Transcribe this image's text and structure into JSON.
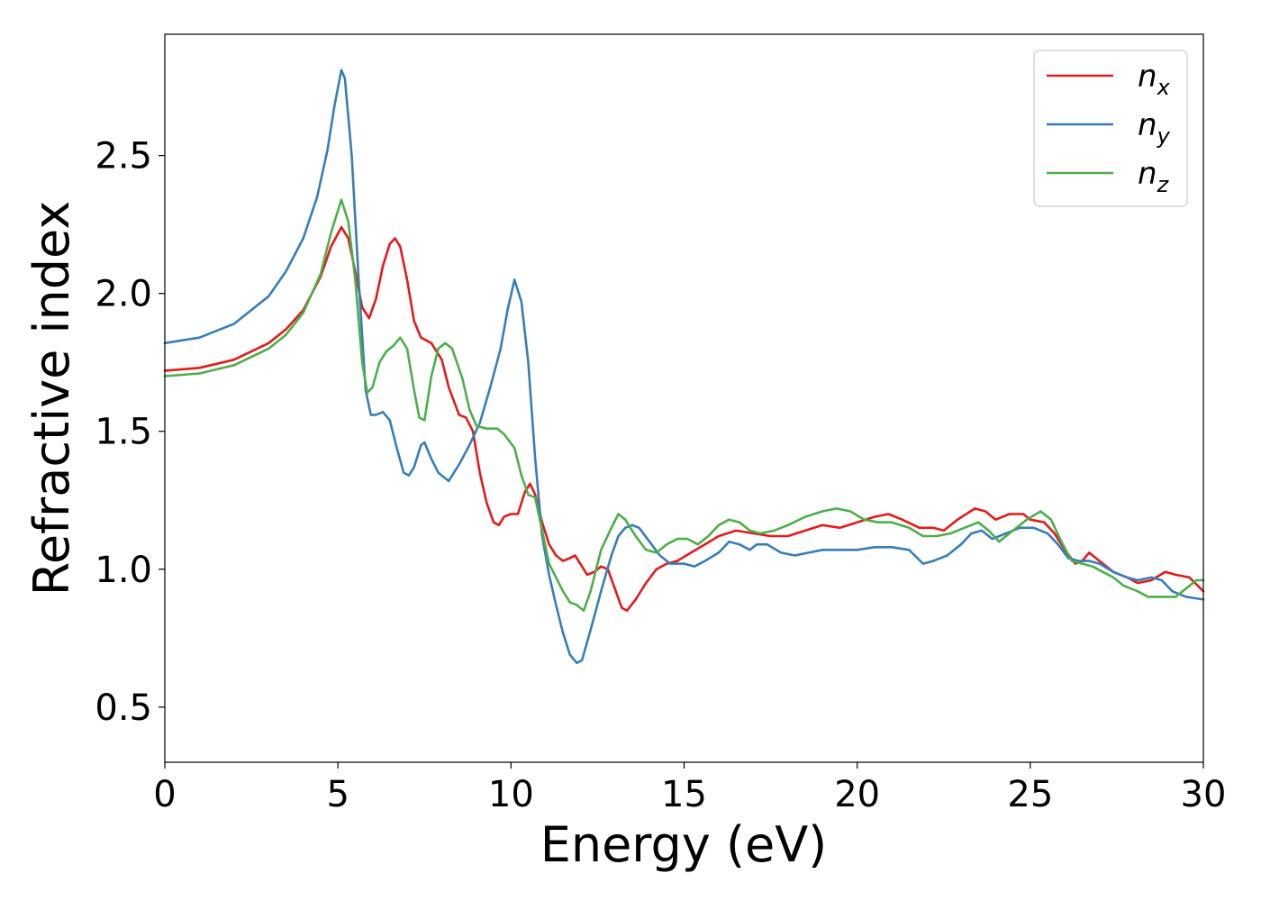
{
  "chart_data": {
    "type": "line",
    "title": "",
    "xlabel": "Energy (eV)",
    "ylabel": "Refractive index",
    "xlim": [
      0,
      30
    ],
    "ylim": [
      0.3,
      2.94
    ],
    "xticks": [
      0,
      5,
      10,
      15,
      20,
      25,
      30
    ],
    "yticks": [
      0.5,
      1.0,
      1.5,
      2.0,
      2.5
    ],
    "xtick_labels": [
      "0",
      "5",
      "10",
      "15",
      "20",
      "25",
      "30"
    ],
    "ytick_labels": [
      "0.5",
      "1.0",
      "1.5",
      "2.0",
      "2.5"
    ],
    "grid": false,
    "legend": {
      "placement": "top-right"
    },
    "series": [
      {
        "name": "n",
        "subscript": "x",
        "color": "#e41a1c",
        "points": [
          [
            0,
            1.72
          ],
          [
            1,
            1.73
          ],
          [
            2,
            1.76
          ],
          [
            3,
            1.82
          ],
          [
            3.5,
            1.87
          ],
          [
            4,
            1.94
          ],
          [
            4.5,
            2.06
          ],
          [
            4.8,
            2.17
          ],
          [
            5.1,
            2.24
          ],
          [
            5.3,
            2.2
          ],
          [
            5.5,
            2.08
          ],
          [
            5.7,
            1.95
          ],
          [
            5.9,
            1.91
          ],
          [
            6.1,
            1.98
          ],
          [
            6.3,
            2.1
          ],
          [
            6.5,
            2.18
          ],
          [
            6.65,
            2.2
          ],
          [
            6.8,
            2.17
          ],
          [
            7.0,
            2.05
          ],
          [
            7.2,
            1.9
          ],
          [
            7.4,
            1.84
          ],
          [
            7.7,
            1.82
          ],
          [
            8.0,
            1.76
          ],
          [
            8.2,
            1.66
          ],
          [
            8.5,
            1.56
          ],
          [
            8.7,
            1.55
          ],
          [
            8.9,
            1.5
          ],
          [
            9.1,
            1.35
          ],
          [
            9.3,
            1.24
          ],
          [
            9.5,
            1.17
          ],
          [
            9.65,
            1.16
          ],
          [
            9.8,
            1.19
          ],
          [
            10.0,
            1.2
          ],
          [
            10.2,
            1.2
          ],
          [
            10.4,
            1.28
          ],
          [
            10.55,
            1.31
          ],
          [
            10.7,
            1.27
          ],
          [
            10.9,
            1.17
          ],
          [
            11.1,
            1.09
          ],
          [
            11.3,
            1.05
          ],
          [
            11.5,
            1.03
          ],
          [
            11.7,
            1.04
          ],
          [
            11.85,
            1.05
          ],
          [
            12.0,
            1.02
          ],
          [
            12.2,
            0.98
          ],
          [
            12.4,
            0.99
          ],
          [
            12.6,
            1.01
          ],
          [
            12.8,
            1.0
          ],
          [
            13.0,
            0.93
          ],
          [
            13.2,
            0.86
          ],
          [
            13.35,
            0.85
          ],
          [
            13.6,
            0.89
          ],
          [
            13.9,
            0.95
          ],
          [
            14.2,
            1.0
          ],
          [
            14.5,
            1.02
          ],
          [
            14.8,
            1.03
          ],
          [
            15.2,
            1.06
          ],
          [
            15.6,
            1.09
          ],
          [
            16.0,
            1.12
          ],
          [
            16.5,
            1.14
          ],
          [
            17.0,
            1.13
          ],
          [
            17.5,
            1.12
          ],
          [
            18.0,
            1.12
          ],
          [
            18.5,
            1.14
          ],
          [
            19.0,
            1.16
          ],
          [
            19.5,
            1.15
          ],
          [
            20.0,
            1.17
          ],
          [
            20.5,
            1.19
          ],
          [
            20.9,
            1.2
          ],
          [
            21.3,
            1.18
          ],
          [
            21.8,
            1.15
          ],
          [
            22.2,
            1.15
          ],
          [
            22.5,
            1.14
          ],
          [
            22.9,
            1.18
          ],
          [
            23.4,
            1.22
          ],
          [
            23.7,
            1.21
          ],
          [
            24.0,
            1.18
          ],
          [
            24.4,
            1.2
          ],
          [
            24.8,
            1.2
          ],
          [
            25.0,
            1.18
          ],
          [
            25.4,
            1.17
          ],
          [
            25.7,
            1.13
          ],
          [
            26.0,
            1.07
          ],
          [
            26.3,
            1.02
          ],
          [
            26.5,
            1.03
          ],
          [
            26.7,
            1.06
          ],
          [
            27.0,
            1.03
          ],
          [
            27.4,
            0.99
          ],
          [
            27.8,
            0.97
          ],
          [
            28.1,
            0.95
          ],
          [
            28.5,
            0.96
          ],
          [
            28.9,
            0.99
          ],
          [
            29.2,
            0.98
          ],
          [
            29.6,
            0.97
          ],
          [
            30.0,
            0.92
          ]
        ]
      },
      {
        "name": "n",
        "subscript": "y",
        "color": "#377eb8",
        "points": [
          [
            0,
            1.82
          ],
          [
            1,
            1.84
          ],
          [
            2,
            1.89
          ],
          [
            3,
            1.99
          ],
          [
            3.5,
            2.08
          ],
          [
            4,
            2.2
          ],
          [
            4.4,
            2.35
          ],
          [
            4.7,
            2.52
          ],
          [
            4.9,
            2.68
          ],
          [
            5.1,
            2.81
          ],
          [
            5.2,
            2.78
          ],
          [
            5.4,
            2.5
          ],
          [
            5.6,
            2.05
          ],
          [
            5.8,
            1.65
          ],
          [
            5.95,
            1.56
          ],
          [
            6.1,
            1.56
          ],
          [
            6.3,
            1.57
          ],
          [
            6.5,
            1.54
          ],
          [
            6.7,
            1.44
          ],
          [
            6.9,
            1.35
          ],
          [
            7.05,
            1.34
          ],
          [
            7.2,
            1.37
          ],
          [
            7.4,
            1.45
          ],
          [
            7.5,
            1.46
          ],
          [
            7.7,
            1.4
          ],
          [
            7.9,
            1.35
          ],
          [
            8.1,
            1.33
          ],
          [
            8.2,
            1.32
          ],
          [
            8.5,
            1.38
          ],
          [
            8.8,
            1.45
          ],
          [
            9.1,
            1.53
          ],
          [
            9.4,
            1.66
          ],
          [
            9.7,
            1.8
          ],
          [
            9.9,
            1.94
          ],
          [
            10.1,
            2.05
          ],
          [
            10.3,
            1.97
          ],
          [
            10.5,
            1.75
          ],
          [
            10.7,
            1.4
          ],
          [
            10.9,
            1.12
          ],
          [
            11.1,
            0.98
          ],
          [
            11.3,
            0.87
          ],
          [
            11.5,
            0.77
          ],
          [
            11.7,
            0.69
          ],
          [
            11.9,
            0.66
          ],
          [
            12.05,
            0.67
          ],
          [
            12.3,
            0.78
          ],
          [
            12.6,
            0.92
          ],
          [
            12.9,
            1.05
          ],
          [
            13.1,
            1.12
          ],
          [
            13.3,
            1.15
          ],
          [
            13.5,
            1.16
          ],
          [
            13.7,
            1.15
          ],
          [
            14.0,
            1.1
          ],
          [
            14.3,
            1.05
          ],
          [
            14.6,
            1.02
          ],
          [
            15.0,
            1.02
          ],
          [
            15.3,
            1.01
          ],
          [
            15.6,
            1.03
          ],
          [
            16.0,
            1.06
          ],
          [
            16.3,
            1.1
          ],
          [
            16.6,
            1.09
          ],
          [
            16.9,
            1.07
          ],
          [
            17.1,
            1.09
          ],
          [
            17.4,
            1.09
          ],
          [
            17.8,
            1.06
          ],
          [
            18.2,
            1.05
          ],
          [
            18.6,
            1.06
          ],
          [
            19.0,
            1.07
          ],
          [
            19.5,
            1.07
          ],
          [
            20.0,
            1.07
          ],
          [
            20.5,
            1.08
          ],
          [
            21.0,
            1.08
          ],
          [
            21.5,
            1.07
          ],
          [
            21.9,
            1.02
          ],
          [
            22.2,
            1.03
          ],
          [
            22.6,
            1.05
          ],
          [
            23.0,
            1.09
          ],
          [
            23.3,
            1.13
          ],
          [
            23.6,
            1.14
          ],
          [
            23.9,
            1.11
          ],
          [
            24.3,
            1.13
          ],
          [
            24.7,
            1.15
          ],
          [
            25.1,
            1.15
          ],
          [
            25.5,
            1.13
          ],
          [
            25.8,
            1.09
          ],
          [
            26.1,
            1.04
          ],
          [
            26.4,
            1.03
          ],
          [
            26.7,
            1.03
          ],
          [
            27.0,
            1.02
          ],
          [
            27.4,
            0.99
          ],
          [
            27.8,
            0.97
          ],
          [
            28.1,
            0.96
          ],
          [
            28.5,
            0.97
          ],
          [
            28.8,
            0.96
          ],
          [
            29.1,
            0.92
          ],
          [
            29.5,
            0.9
          ],
          [
            30.0,
            0.89
          ]
        ]
      },
      {
        "name": "n",
        "subscript": "z",
        "color": "#4daf4a",
        "points": [
          [
            0,
            1.7
          ],
          [
            1,
            1.71
          ],
          [
            2,
            1.74
          ],
          [
            3,
            1.8
          ],
          [
            3.5,
            1.85
          ],
          [
            4,
            1.93
          ],
          [
            4.5,
            2.07
          ],
          [
            4.8,
            2.22
          ],
          [
            5.1,
            2.34
          ],
          [
            5.3,
            2.26
          ],
          [
            5.5,
            2.05
          ],
          [
            5.7,
            1.75
          ],
          [
            5.85,
            1.64
          ],
          [
            6.0,
            1.66
          ],
          [
            6.2,
            1.75
          ],
          [
            6.4,
            1.79
          ],
          [
            6.6,
            1.81
          ],
          [
            6.8,
            1.84
          ],
          [
            7.0,
            1.8
          ],
          [
            7.2,
            1.65
          ],
          [
            7.35,
            1.55
          ],
          [
            7.5,
            1.54
          ],
          [
            7.7,
            1.7
          ],
          [
            7.9,
            1.8
          ],
          [
            8.1,
            1.82
          ],
          [
            8.3,
            1.8
          ],
          [
            8.6,
            1.69
          ],
          [
            8.8,
            1.58
          ],
          [
            9.0,
            1.52
          ],
          [
            9.3,
            1.51
          ],
          [
            9.6,
            1.51
          ],
          [
            9.8,
            1.49
          ],
          [
            10.1,
            1.44
          ],
          [
            10.3,
            1.34
          ],
          [
            10.5,
            1.27
          ],
          [
            10.7,
            1.26
          ],
          [
            10.9,
            1.14
          ],
          [
            11.1,
            1.02
          ],
          [
            11.3,
            0.97
          ],
          [
            11.5,
            0.92
          ],
          [
            11.7,
            0.88
          ],
          [
            11.9,
            0.87
          ],
          [
            12.1,
            0.85
          ],
          [
            12.3,
            0.92
          ],
          [
            12.6,
            1.07
          ],
          [
            12.9,
            1.15
          ],
          [
            13.1,
            1.2
          ],
          [
            13.3,
            1.18
          ],
          [
            13.6,
            1.12
          ],
          [
            13.9,
            1.07
          ],
          [
            14.2,
            1.06
          ],
          [
            14.5,
            1.09
          ],
          [
            14.8,
            1.11
          ],
          [
            15.1,
            1.11
          ],
          [
            15.4,
            1.09
          ],
          [
            15.7,
            1.12
          ],
          [
            16.0,
            1.16
          ],
          [
            16.3,
            1.18
          ],
          [
            16.6,
            1.17
          ],
          [
            16.9,
            1.14
          ],
          [
            17.2,
            1.13
          ],
          [
            17.6,
            1.14
          ],
          [
            18.0,
            1.16
          ],
          [
            18.5,
            1.19
          ],
          [
            19.0,
            1.21
          ],
          [
            19.4,
            1.22
          ],
          [
            19.8,
            1.21
          ],
          [
            20.2,
            1.18
          ],
          [
            20.6,
            1.17
          ],
          [
            21.0,
            1.17
          ],
          [
            21.5,
            1.15
          ],
          [
            21.9,
            1.12
          ],
          [
            22.3,
            1.12
          ],
          [
            22.7,
            1.13
          ],
          [
            23.1,
            1.15
          ],
          [
            23.5,
            1.17
          ],
          [
            23.8,
            1.14
          ],
          [
            24.1,
            1.1
          ],
          [
            24.5,
            1.14
          ],
          [
            24.9,
            1.18
          ],
          [
            25.3,
            1.21
          ],
          [
            25.6,
            1.18
          ],
          [
            25.9,
            1.1
          ],
          [
            26.2,
            1.03
          ],
          [
            26.5,
            1.02
          ],
          [
            26.8,
            1.01
          ],
          [
            27.1,
            0.99
          ],
          [
            27.4,
            0.97
          ],
          [
            27.7,
            0.94
          ],
          [
            28.1,
            0.92
          ],
          [
            28.4,
            0.9
          ],
          [
            28.8,
            0.9
          ],
          [
            29.2,
            0.9
          ],
          [
            29.5,
            0.93
          ],
          [
            29.8,
            0.96
          ],
          [
            30.0,
            0.96
          ]
        ]
      }
    ]
  }
}
